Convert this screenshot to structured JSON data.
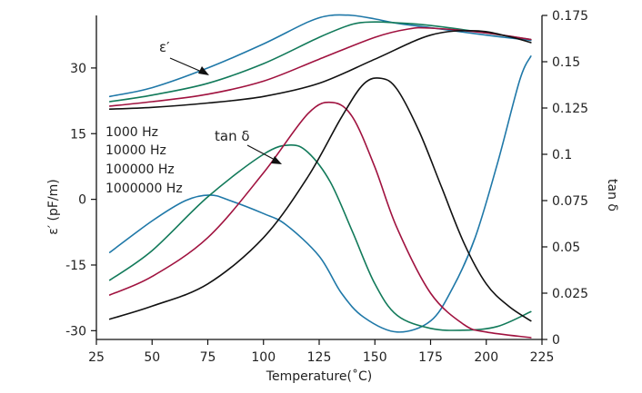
{
  "chart_data": {
    "type": "line",
    "title": "",
    "xlabel": "Temperature(˚C)",
    "ylabel_left": "ε′ (pF/m)",
    "ylabel_right": "tan δ",
    "xlim": [
      25,
      225
    ],
    "ylim_left": [
      -32,
      42
    ],
    "ylim_right": [
      0,
      0.175
    ],
    "x_ticks": [
      "25",
      "50",
      "75",
      "100",
      "125",
      "150",
      "175",
      "200",
      "225"
    ],
    "y_left_ticks": [
      "-30",
      "-15",
      "0",
      "15",
      "30"
    ],
    "y_right_ticks": [
      "0",
      "0.025",
      "0.05",
      "0.075",
      "0.1",
      "0.125",
      "0.15",
      "0.175"
    ],
    "grid": false,
    "legend_position": "left-center",
    "legend": [
      {
        "label": "1000 Hz",
        "color": "#1f78a8"
      },
      {
        "label": "10000 Hz",
        "color": "#127a5a"
      },
      {
        "label": "100000 Hz",
        "color": "#a0123f"
      },
      {
        "label": "1000000 Hz",
        "color": "#111111"
      }
    ],
    "annotations": [
      {
        "text": "ε′",
        "points_to": "permittivity curves (left axis)"
      },
      {
        "text": "tan δ",
        "points_to": "loss curves (right axis)"
      }
    ],
    "series": [
      {
        "frequency": "1000 Hz",
        "kind": "permittivity",
        "axis": "left",
        "color": "#1f78a8",
        "x": [
          31,
          50,
          75,
          100,
          120,
          130,
          140,
          150,
          160,
          175,
          200,
          220
        ],
        "y": [
          23.5,
          25.5,
          30,
          35.5,
          40.5,
          42,
          42,
          41.2,
          40.2,
          39.2,
          37.5,
          36.3
        ]
      },
      {
        "frequency": "10000 Hz",
        "kind": "permittivity",
        "axis": "left",
        "color": "#127a5a",
        "x": [
          31,
          50,
          75,
          100,
          125,
          140,
          150,
          160,
          175,
          200,
          220
        ],
        "y": [
          22.3,
          23.8,
          26.5,
          31,
          37,
          40,
          40.5,
          40.3,
          39.7,
          38,
          36.5
        ]
      },
      {
        "frequency": "100000 Hz",
        "kind": "permittivity",
        "axis": "left",
        "color": "#a0123f",
        "x": [
          31,
          50,
          75,
          100,
          125,
          150,
          165,
          175,
          200,
          220
        ],
        "y": [
          21.3,
          22.3,
          24,
          27,
          32,
          37,
          38.9,
          39.1,
          38,
          36.5
        ]
      },
      {
        "frequency": "1000000 Hz",
        "kind": "permittivity",
        "axis": "left",
        "color": "#111111",
        "x": [
          31,
          50,
          75,
          100,
          125,
          150,
          175,
          195,
          210,
          220
        ],
        "y": [
          20.6,
          21,
          22,
          23.5,
          26.5,
          32,
          37.5,
          38.5,
          37.2,
          35.8
        ]
      },
      {
        "frequency": "1000 Hz",
        "kind": "loss",
        "axis": "right",
        "color": "#1f78a8",
        "x": [
          31,
          50,
          65,
          76,
          85,
          100,
          110,
          125,
          135,
          145,
          160,
          175,
          185,
          195,
          205,
          215,
          220
        ],
        "y": [
          0.047,
          0.064,
          0.075,
          0.078,
          0.075,
          0.068,
          0.062,
          0.045,
          0.025,
          0.012,
          0.004,
          0.01,
          0.028,
          0.055,
          0.095,
          0.14,
          0.153
        ]
      },
      {
        "frequency": "10000 Hz",
        "kind": "loss",
        "axis": "right",
        "color": "#127a5a",
        "x": [
          31,
          50,
          75,
          100,
          112,
          120,
          130,
          140,
          150,
          160,
          175,
          190,
          205,
          220
        ],
        "y": [
          0.032,
          0.048,
          0.077,
          0.1,
          0.105,
          0.101,
          0.085,
          0.058,
          0.03,
          0.013,
          0.006,
          0.005,
          0.007,
          0.015
        ]
      },
      {
        "frequency": "100000 Hz",
        "kind": "loss",
        "axis": "right",
        "color": "#a0123f",
        "x": [
          31,
          50,
          75,
          100,
          120,
          131,
          140,
          150,
          160,
          175,
          190,
          200,
          220
        ],
        "y": [
          0.024,
          0.034,
          0.055,
          0.09,
          0.122,
          0.128,
          0.12,
          0.093,
          0.06,
          0.025,
          0.008,
          0.004,
          0.001
        ]
      },
      {
        "frequency": "1000000 Hz",
        "kind": "loss",
        "axis": "right",
        "color": "#111111",
        "x": [
          31,
          50,
          75,
          100,
          120,
          135,
          145,
          153,
          160,
          170,
          180,
          190,
          200,
          210,
          220
        ],
        "y": [
          0.011,
          0.018,
          0.03,
          0.055,
          0.088,
          0.12,
          0.138,
          0.141,
          0.135,
          0.112,
          0.082,
          0.052,
          0.03,
          0.018,
          0.01
        ]
      }
    ]
  }
}
